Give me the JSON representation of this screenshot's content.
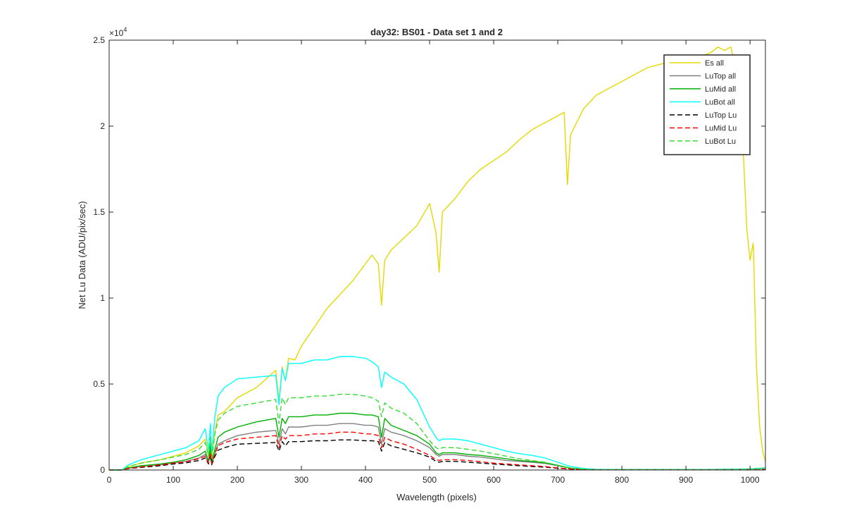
{
  "chart_data": {
    "type": "line",
    "title": "day32: BS01 - Data set 1 and 2",
    "xlabel": "Wavelength (pixels)",
    "ylabel": "Net Lu Data (ADU/pix/sec)",
    "y_exponent_label": "×10",
    "y_exponent_power": "4",
    "xlim": [
      0,
      1024
    ],
    "ylim": [
      0,
      25000
    ],
    "x_ticks": [
      0,
      100,
      200,
      300,
      400,
      500,
      600,
      700,
      800,
      900,
      1000
    ],
    "y_ticks": [
      0,
      5000,
      10000,
      15000,
      20000,
      25000
    ],
    "y_tick_labels": [
      "0",
      "0.5",
      "1",
      "1.5",
      "2",
      "2.5"
    ],
    "grid": false,
    "legend_position": "top-right",
    "series": [
      {
        "name": "Es  all",
        "color": "#e6d800",
        "dash": "solid",
        "x": [
          0,
          20,
          30,
          50,
          80,
          100,
          120,
          140,
          150,
          155,
          158,
          160,
          165,
          170,
          180,
          200,
          230,
          260,
          265,
          270,
          275,
          280,
          290,
          300,
          320,
          340,
          360,
          380,
          400,
          410,
          420,
          425,
          430,
          440,
          460,
          480,
          500,
          510,
          515,
          520,
          540,
          560,
          580,
          600,
          620,
          640,
          660,
          680,
          700,
          710,
          715,
          720,
          740,
          760,
          780,
          800,
          820,
          840,
          860,
          880,
          900,
          905,
          910,
          920,
          940,
          950,
          960,
          970,
          975,
          980,
          985,
          990,
          995,
          1000,
          1005,
          1010,
          1015,
          1020,
          1024
        ],
        "y": [
          0,
          0,
          200,
          400,
          600,
          800,
          1000,
          1400,
          1800,
          800,
          1700,
          600,
          2200,
          3200,
          3400,
          4200,
          4800,
          5800,
          4000,
          6000,
          5200,
          6500,
          6400,
          7200,
          8300,
          9400,
          10200,
          11000,
          12000,
          12500,
          12000,
          9600,
          12200,
          12800,
          13500,
          14200,
          15500,
          13800,
          11500,
          15000,
          15800,
          16800,
          17500,
          18000,
          18500,
          19200,
          19800,
          20200,
          20600,
          20800,
          16600,
          19500,
          21000,
          21800,
          22200,
          22600,
          23000,
          23400,
          23600,
          23800,
          24000,
          19000,
          23500,
          24000,
          24300,
          24600,
          24400,
          24600,
          23800,
          24000,
          21000,
          18000,
          14000,
          12200,
          13200,
          6000,
          2500,
          1000,
          500
        ]
      },
      {
        "name": "LuTop  all",
        "color": "#808080",
        "dash": "solid",
        "x": [
          0,
          20,
          30,
          50,
          80,
          100,
          120,
          140,
          150,
          155,
          158,
          160,
          165,
          170,
          180,
          200,
          230,
          260,
          265,
          270,
          275,
          280,
          300,
          320,
          340,
          360,
          380,
          400,
          410,
          420,
          425,
          430,
          440,
          460,
          480,
          500,
          510,
          515,
          520,
          540,
          560,
          580,
          600,
          620,
          640,
          660,
          680,
          700,
          720,
          740,
          760,
          800,
          850,
          900,
          950,
          1000,
          1024
        ],
        "y": [
          0,
          0,
          100,
          200,
          300,
          400,
          500,
          700,
          900,
          450,
          1200,
          350,
          1000,
          1500,
          1700,
          2000,
          2200,
          2300,
          1500,
          2400,
          2100,
          2500,
          2500,
          2600,
          2600,
          2700,
          2700,
          2600,
          2600,
          2500,
          1500,
          2400,
          2200,
          2000,
          1700,
          1300,
          900,
          800,
          900,
          900,
          800,
          750,
          650,
          550,
          500,
          450,
          380,
          250,
          100,
          50,
          30,
          20,
          20,
          20,
          20,
          50,
          100
        ]
      },
      {
        "name": "LuMid  all",
        "color": "#00b000",
        "dash": "solid",
        "x": [
          0,
          20,
          30,
          50,
          80,
          100,
          120,
          140,
          150,
          155,
          158,
          160,
          165,
          170,
          180,
          200,
          230,
          260,
          265,
          270,
          275,
          280,
          300,
          320,
          340,
          360,
          380,
          400,
          410,
          420,
          425,
          430,
          440,
          460,
          480,
          500,
          510,
          515,
          520,
          540,
          560,
          580,
          600,
          620,
          640,
          660,
          680,
          700,
          720,
          740,
          760,
          800,
          850,
          900,
          950,
          1000,
          1024
        ],
        "y": [
          0,
          0,
          120,
          250,
          350,
          450,
          600,
          850,
          1100,
          500,
          1400,
          400,
          1200,
          1900,
          2200,
          2500,
          2800,
          3000,
          1900,
          3000,
          2700,
          3100,
          3100,
          3200,
          3200,
          3300,
          3300,
          3200,
          3200,
          3100,
          1900,
          3000,
          2600,
          2300,
          2000,
          1500,
          1000,
          900,
          1000,
          1000,
          900,
          850,
          750,
          650,
          550,
          500,
          420,
          270,
          100,
          50,
          30,
          20,
          20,
          20,
          20,
          60,
          120
        ]
      },
      {
        "name": "LuBot  all",
        "color": "#00ffff",
        "dash": "solid",
        "x": [
          0,
          20,
          30,
          50,
          80,
          100,
          120,
          140,
          150,
          155,
          158,
          160,
          165,
          170,
          180,
          200,
          230,
          260,
          265,
          270,
          275,
          280,
          300,
          320,
          340,
          360,
          380,
          400,
          410,
          420,
          425,
          430,
          440,
          460,
          480,
          500,
          510,
          515,
          520,
          540,
          560,
          580,
          600,
          620,
          640,
          660,
          680,
          700,
          720,
          740,
          760,
          800,
          850,
          900,
          950,
          1000,
          1024
        ],
        "y": [
          0,
          0,
          300,
          600,
          900,
          1100,
          1300,
          1700,
          2400,
          1100,
          2700,
          1000,
          3100,
          4300,
          4800,
          5300,
          5400,
          5500,
          3800,
          5900,
          5200,
          6200,
          6200,
          6400,
          6400,
          6600,
          6600,
          6500,
          6300,
          6000,
          4800,
          5700,
          5400,
          5000,
          4100,
          2500,
          1900,
          1700,
          1800,
          1800,
          1700,
          1500,
          1300,
          1100,
          950,
          850,
          700,
          450,
          200,
          90,
          40,
          25,
          20,
          25,
          40,
          60,
          100
        ]
      },
      {
        "name": "LuTop  Lu",
        "color": "#000000",
        "dash": "dashed",
        "x": [
          0,
          20,
          30,
          50,
          80,
          100,
          120,
          140,
          150,
          155,
          158,
          160,
          165,
          170,
          180,
          200,
          230,
          260,
          265,
          270,
          275,
          280,
          300,
          320,
          340,
          360,
          380,
          400,
          410,
          420,
          425,
          430,
          440,
          460,
          480,
          500,
          510,
          515,
          520,
          540,
          560,
          580,
          600,
          620,
          640,
          660,
          680,
          700,
          720,
          740,
          760,
          800,
          850,
          900,
          950,
          1000,
          1024
        ],
        "y": [
          0,
          0,
          80,
          150,
          250,
          350,
          420,
          550,
          700,
          350,
          900,
          300,
          800,
          1150,
          1300,
          1500,
          1550,
          1600,
          1100,
          1650,
          1400,
          1650,
          1650,
          1700,
          1700,
          1750,
          1750,
          1700,
          1700,
          1650,
          1100,
          1600,
          1400,
          1200,
          1000,
          750,
          500,
          450,
          500,
          500,
          450,
          400,
          350,
          300,
          250,
          200,
          170,
          100,
          50,
          20,
          10,
          10,
          10,
          10,
          10,
          20,
          40
        ]
      },
      {
        "name": "LuMid  Lu",
        "color": "#ff0000",
        "dash": "dashed",
        "x": [
          0,
          20,
          30,
          50,
          80,
          100,
          120,
          140,
          150,
          155,
          158,
          160,
          165,
          170,
          180,
          200,
          230,
          260,
          265,
          270,
          275,
          280,
          300,
          320,
          340,
          360,
          380,
          400,
          410,
          420,
          425,
          430,
          440,
          460,
          480,
          500,
          510,
          515,
          520,
          540,
          560,
          580,
          600,
          620,
          640,
          660,
          680,
          700,
          720,
          740,
          760,
          800,
          850,
          900,
          950,
          1000,
          1024
        ],
        "y": [
          0,
          0,
          90,
          180,
          300,
          400,
          480,
          650,
          800,
          400,
          1000,
          350,
          950,
          1400,
          1600,
          1800,
          1900,
          2000,
          1300,
          2000,
          1800,
          2000,
          2000,
          2100,
          2100,
          2200,
          2200,
          2100,
          2100,
          2000,
          1300,
          1900,
          1700,
          1500,
          1200,
          850,
          600,
          550,
          600,
          600,
          550,
          480,
          400,
          350,
          300,
          250,
          200,
          120,
          60,
          25,
          15,
          10,
          10,
          10,
          15,
          30,
          50
        ]
      },
      {
        "name": "LuBot  Lu",
        "color": "#33dd33",
        "dash": "dashed",
        "x": [
          0,
          20,
          30,
          50,
          80,
          100,
          120,
          140,
          150,
          155,
          158,
          160,
          165,
          170,
          180,
          200,
          230,
          260,
          265,
          270,
          275,
          280,
          300,
          320,
          340,
          360,
          380,
          400,
          410,
          420,
          425,
          430,
          440,
          460,
          480,
          500,
          510,
          515,
          520,
          540,
          560,
          580,
          600,
          620,
          640,
          660,
          680,
          700,
          720,
          740,
          760,
          800,
          850,
          900,
          950,
          1000,
          1024
        ],
        "y": [
          0,
          0,
          200,
          400,
          600,
          750,
          900,
          1200,
          1600,
          800,
          1900,
          700,
          2100,
          2900,
          3300,
          3700,
          3900,
          4100,
          2700,
          4200,
          3800,
          4200,
          4200,
          4300,
          4300,
          4400,
          4400,
          4300,
          4200,
          4000,
          3100,
          3900,
          3600,
          3300,
          2700,
          1700,
          1300,
          1200,
          1300,
          1300,
          1200,
          1100,
          950,
          800,
          650,
          550,
          450,
          280,
          120,
          50,
          25,
          15,
          15,
          15,
          25,
          40,
          70
        ]
      }
    ]
  }
}
